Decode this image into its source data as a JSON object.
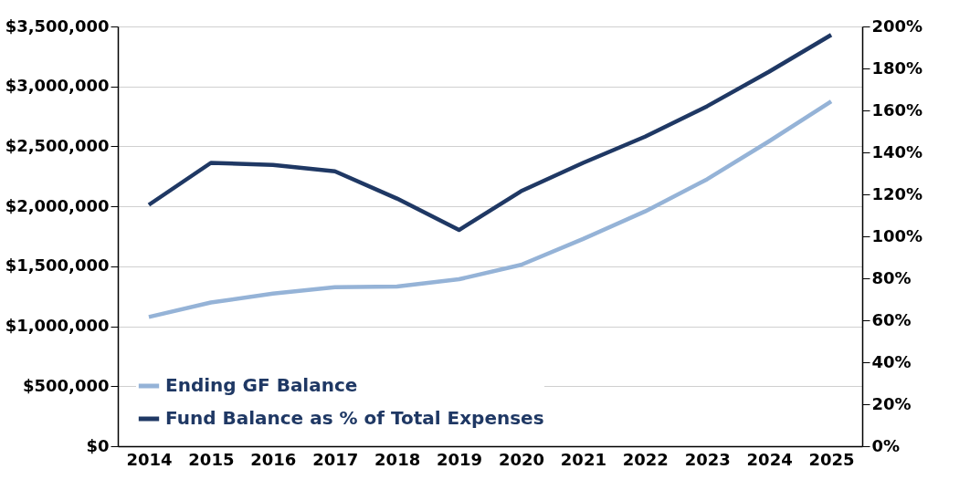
{
  "chart_data": {
    "type": "line",
    "categories": [
      "2014",
      "2015",
      "2016",
      "2017",
      "2018",
      "2019",
      "2020",
      "2021",
      "2022",
      "2023",
      "2024",
      "2025"
    ],
    "series": [
      {
        "name": "Ending GF Balance",
        "color": "#95b3d7",
        "values": [
          1078000,
          1198000,
          1272000,
          1325000,
          1332000,
          1392000,
          1512000,
          1728000,
          1958000,
          2226000,
          2543000,
          2875000
        ]
      },
      {
        "name": "Fund Balance as % of Total Expenses",
        "color": "#1f3864",
        "axis": "y2",
        "values": [
          115,
          135,
          134,
          131,
          118,
          103,
          121.5,
          135,
          147.5,
          162,
          178.5,
          196
        ]
      }
    ],
    "ylim": [
      0,
      3500000
    ],
    "yticks": [
      {
        "value": 0,
        "label": "$0"
      },
      {
        "value": 500000,
        "label": "$500,000"
      },
      {
        "value": 1000000,
        "label": "$1,000,000"
      },
      {
        "value": 1500000,
        "label": "$1,500,000"
      },
      {
        "value": 2000000,
        "label": "$2,000,000"
      },
      {
        "value": 2500000,
        "label": "$2,500,000"
      },
      {
        "value": 3000000,
        "label": "$3,000,000"
      },
      {
        "value": 3500000,
        "label": "$3,500,000"
      }
    ],
    "y2lim": [
      0,
      200
    ],
    "y2ticks": [
      {
        "value": 0,
        "label": "0%"
      },
      {
        "value": 20,
        "label": "20%"
      },
      {
        "value": 40,
        "label": "40%"
      },
      {
        "value": 60,
        "label": "60%"
      },
      {
        "value": 80,
        "label": "80%"
      },
      {
        "value": 100,
        "label": "100%"
      },
      {
        "value": 120,
        "label": "120%"
      },
      {
        "value": 140,
        "label": "140%"
      },
      {
        "value": 160,
        "label": "160%"
      },
      {
        "value": 180,
        "label": "180%"
      },
      {
        "value": 200,
        "label": "200%"
      }
    ],
    "grid": "y",
    "legend": "bottom left",
    "line_style": "solid",
    "marker": "none"
  }
}
